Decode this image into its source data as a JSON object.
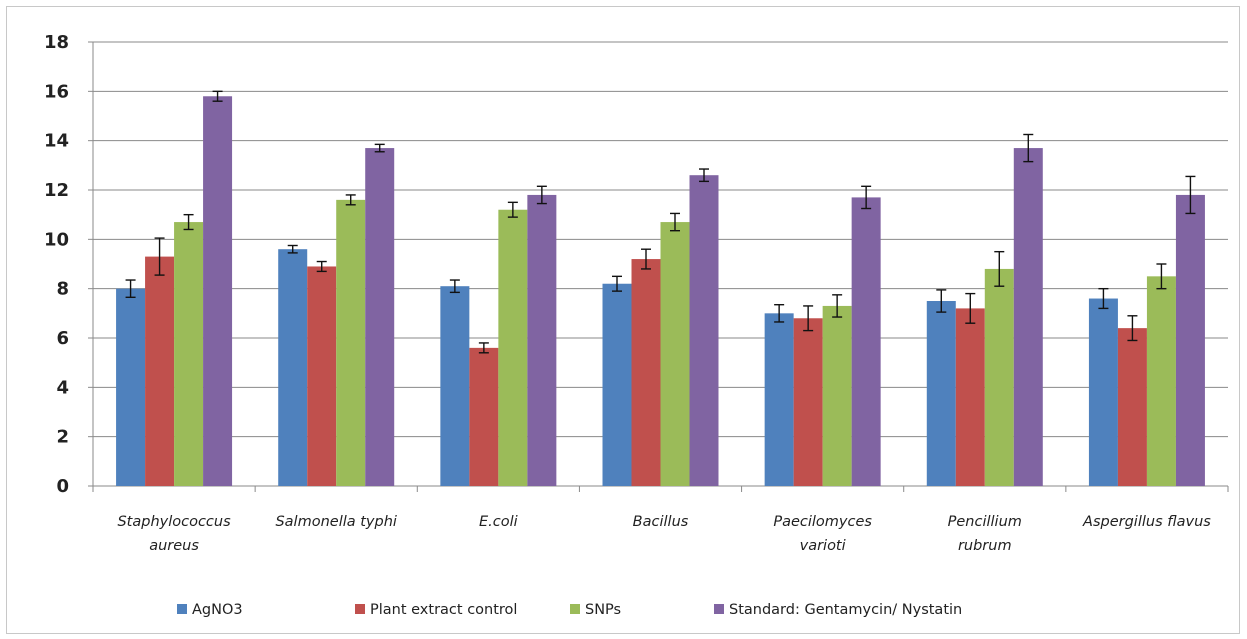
{
  "chart_data": {
    "type": "bar",
    "categories": [
      [
        "Staphylococcus",
        "aureus"
      ],
      [
        "Salmonella typhi"
      ],
      [
        "E.coli"
      ],
      [
        "Bacillus"
      ],
      [
        "Paecilomyces",
        "varioti"
      ],
      [
        "Pencillium",
        "rubrum"
      ],
      [
        "Aspergillus flavus"
      ]
    ],
    "series": [
      {
        "name": "AgNO3",
        "color": "#4f81bd",
        "values": [
          8.0,
          9.6,
          8.1,
          8.2,
          7.0,
          7.5,
          7.6
        ],
        "errors": [
          0.35,
          0.15,
          0.25,
          0.3,
          0.35,
          0.45,
          0.4
        ]
      },
      {
        "name": "Plant extract control",
        "color": "#c0504d",
        "values": [
          9.3,
          8.9,
          5.6,
          9.2,
          6.8,
          7.2,
          6.4
        ],
        "errors": [
          0.75,
          0.2,
          0.2,
          0.4,
          0.5,
          0.6,
          0.5
        ]
      },
      {
        "name": "SNPs",
        "color": "#9bbb59",
        "values": [
          10.7,
          11.6,
          11.2,
          10.7,
          7.3,
          8.8,
          8.5
        ],
        "errors": [
          0.3,
          0.2,
          0.3,
          0.35,
          0.45,
          0.7,
          0.5
        ]
      },
      {
        "name": "Standard: Gentamycin/ Nystatin",
        "color": "#8064a2",
        "values": [
          15.8,
          13.7,
          11.8,
          12.6,
          11.7,
          13.7,
          11.8
        ],
        "errors": [
          0.2,
          0.15,
          0.35,
          0.25,
          0.45,
          0.55,
          0.75
        ]
      }
    ],
    "ylim": [
      0,
      18
    ],
    "yticks": [
      0,
      2,
      4,
      6,
      8,
      10,
      12,
      14,
      16,
      18
    ],
    "grid": true,
    "legend_position": "bottom",
    "title": "",
    "xlabel": "",
    "ylabel": ""
  }
}
